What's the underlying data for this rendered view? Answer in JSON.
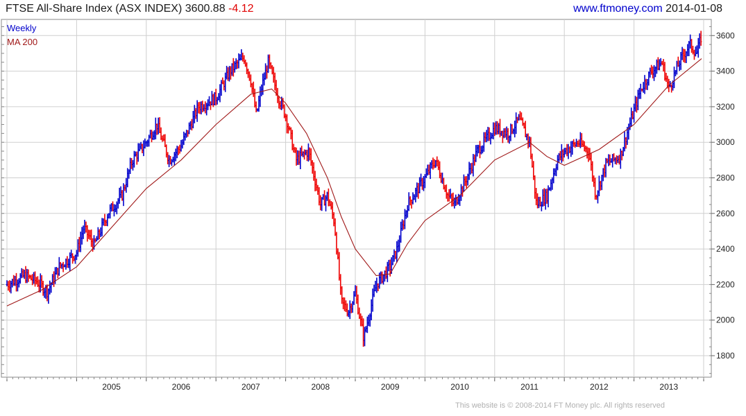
{
  "header": {
    "title": "FTSE All-Share Index (ASX INDEX)",
    "last": "3600.88",
    "change": "-4.12",
    "site": "www.ftmoney.com",
    "date": "2014-01-08"
  },
  "footer": {
    "copyright": "This website is © 2008-2014 FT Money plc. All rights reserved"
  },
  "colors": {
    "up": "#0000cc",
    "down": "#ee0000",
    "ma": "#a01818",
    "grid": "#cfcfcf",
    "weekly_label": "#0000cc",
    "ma_label": "#a01818"
  },
  "chart_data": {
    "type": "line",
    "chart_style": "weekly high-low price bars with 200 moving average",
    "legend": [
      "Weekly",
      "MA 200"
    ],
    "legend_position": "top-left",
    "grid": true,
    "xlabel": "",
    "ylabel": "",
    "ylim": [
      1700,
      3700
    ],
    "xlim": [
      2004.0,
      2014.03
    ],
    "y_ticks": [
      1800,
      2000,
      2200,
      2400,
      2600,
      2800,
      3000,
      3200,
      3400,
      3600
    ],
    "x_ticks": [
      {
        "label": "2005",
        "value": 2005
      },
      {
        "label": "2006",
        "value": 2006
      },
      {
        "label": "2007",
        "value": 2007
      },
      {
        "label": "2008",
        "value": 2008
      },
      {
        "label": "2009",
        "value": 2009
      },
      {
        "label": "2010",
        "value": 2010
      },
      {
        "label": "2011",
        "value": 2011
      },
      {
        "label": "2012",
        "value": 2012
      },
      {
        "label": "2013",
        "value": 2013
      }
    ],
    "series": [
      {
        "name": "Weekly",
        "x": [
          2004.0,
          2004.25,
          2004.42,
          2004.58,
          2004.75,
          2005.0,
          2005.1,
          2005.25,
          2005.45,
          2005.65,
          2005.8,
          2006.0,
          2006.15,
          2006.33,
          2006.5,
          2006.75,
          2007.0,
          2007.2,
          2007.4,
          2007.5,
          2007.58,
          2007.65,
          2007.75,
          2007.9,
          2008.0,
          2008.15,
          2008.33,
          2008.5,
          2008.6,
          2008.7,
          2008.8,
          2008.9,
          2009.0,
          2009.12,
          2009.3,
          2009.5,
          2009.6,
          2009.75,
          2010.0,
          2010.15,
          2010.33,
          2010.42,
          2010.6,
          2010.75,
          2011.0,
          2011.2,
          2011.35,
          2011.5,
          2011.6,
          2011.75,
          2011.9,
          2012.0,
          2012.2,
          2012.35,
          2012.45,
          2012.6,
          2012.8,
          2012.9,
          2013.0,
          2013.1,
          2013.25,
          2013.4,
          2013.5,
          2013.65,
          2013.8,
          2013.9,
          2013.97
        ],
        "values": [
          2200,
          2250,
          2220,
          2160,
          2300,
          2380,
          2520,
          2420,
          2600,
          2700,
          2900,
          3000,
          3100,
          2900,
          2980,
          3200,
          3250,
          3400,
          3480,
          3350,
          3150,
          3300,
          3450,
          3250,
          3150,
          2900,
          2950,
          2650,
          2700,
          2550,
          2100,
          2050,
          2150,
          1900,
          2200,
          2300,
          2400,
          2650,
          2800,
          2900,
          2700,
          2650,
          2800,
          2950,
          3080,
          3050,
          3130,
          3000,
          2650,
          2700,
          2900,
          2950,
          3000,
          2950,
          2700,
          2880,
          2920,
          3050,
          3180,
          3300,
          3400,
          3450,
          3300,
          3450,
          3550,
          3500,
          3600
        ]
      },
      {
        "name": "MA 200",
        "x": [
          2004.0,
          2004.5,
          2005.0,
          2005.5,
          2006.0,
          2006.5,
          2007.0,
          2007.5,
          2007.8,
          2008.0,
          2008.3,
          2008.6,
          2008.8,
          2009.0,
          2009.3,
          2009.5,
          2009.75,
          2010.0,
          2010.5,
          2011.0,
          2011.5,
          2011.75,
          2012.0,
          2012.5,
          2013.0,
          2013.5,
          2013.97
        ],
        "values": [
          2080,
          2170,
          2300,
          2520,
          2740,
          2900,
          3100,
          3270,
          3300,
          3220,
          3050,
          2800,
          2580,
          2400,
          2250,
          2260,
          2430,
          2560,
          2700,
          2900,
          3000,
          2920,
          2870,
          2960,
          3100,
          3320,
          3470
        ]
      }
    ]
  }
}
